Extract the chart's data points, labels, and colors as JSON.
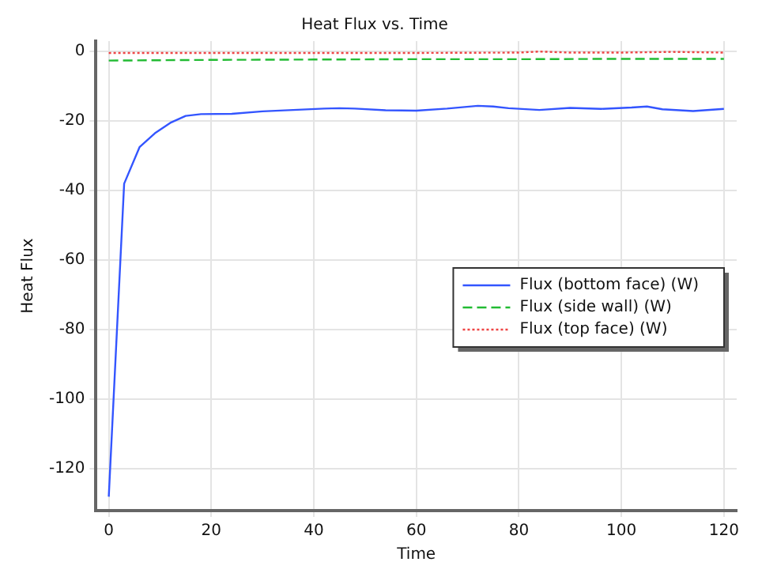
{
  "chart_data": {
    "type": "line",
    "title": "Heat Flux vs. Time",
    "xlabel": "Time",
    "ylabel": "Heat Flux",
    "xlim": [
      -2.5,
      122.5
    ],
    "xticks": [
      0,
      20,
      40,
      60,
      80,
      100,
      120
    ],
    "ylim": [
      -132,
      3
    ],
    "yticks": [
      -120,
      -100,
      -80,
      -60,
      -40,
      -20,
      0
    ],
    "grid": true,
    "legend": "right",
    "marker": "none",
    "series": [
      {
        "name": "Flux (bottom face) (W)",
        "color": "#3355ff",
        "line_style": "solid",
        "x": [
          0,
          3,
          6,
          9,
          12,
          15,
          18,
          24,
          30,
          36,
          42,
          45,
          48,
          54,
          60,
          66,
          72,
          75,
          78,
          84,
          90,
          96,
          102,
          105,
          108,
          114,
          120
        ],
        "values": [
          -128,
          -38,
          -27.5,
          -23.5,
          -20.5,
          -18.5,
          -18,
          -17.9,
          -17.2,
          -16.8,
          -16.4,
          -16.3,
          -16.4,
          -16.9,
          -17,
          -16.4,
          -15.6,
          -15.8,
          -16.3,
          -16.8,
          -16.2,
          -16.5,
          -16.1,
          -15.8,
          -16.6,
          -17.1,
          -16.5
        ]
      },
      {
        "name": "Flux (side wall) (W)",
        "color": "#22bb33",
        "line_style": "dashed",
        "x": [
          0,
          20,
          40,
          60,
          80,
          100,
          120
        ],
        "values": [
          -2.6,
          -2.4,
          -2.3,
          -2.2,
          -2.2,
          -2.1,
          -2.1
        ]
      },
      {
        "name": "Flux (top face) (W)",
        "color": "#ee4444",
        "line_style": "dotted",
        "x": [
          0,
          20,
          40,
          60,
          80,
          84,
          90,
          100,
          110,
          120
        ],
        "values": [
          -0.4,
          -0.4,
          -0.4,
          -0.4,
          -0.3,
          0,
          -0.3,
          -0.3,
          -0.1,
          -0.3
        ]
      }
    ]
  }
}
